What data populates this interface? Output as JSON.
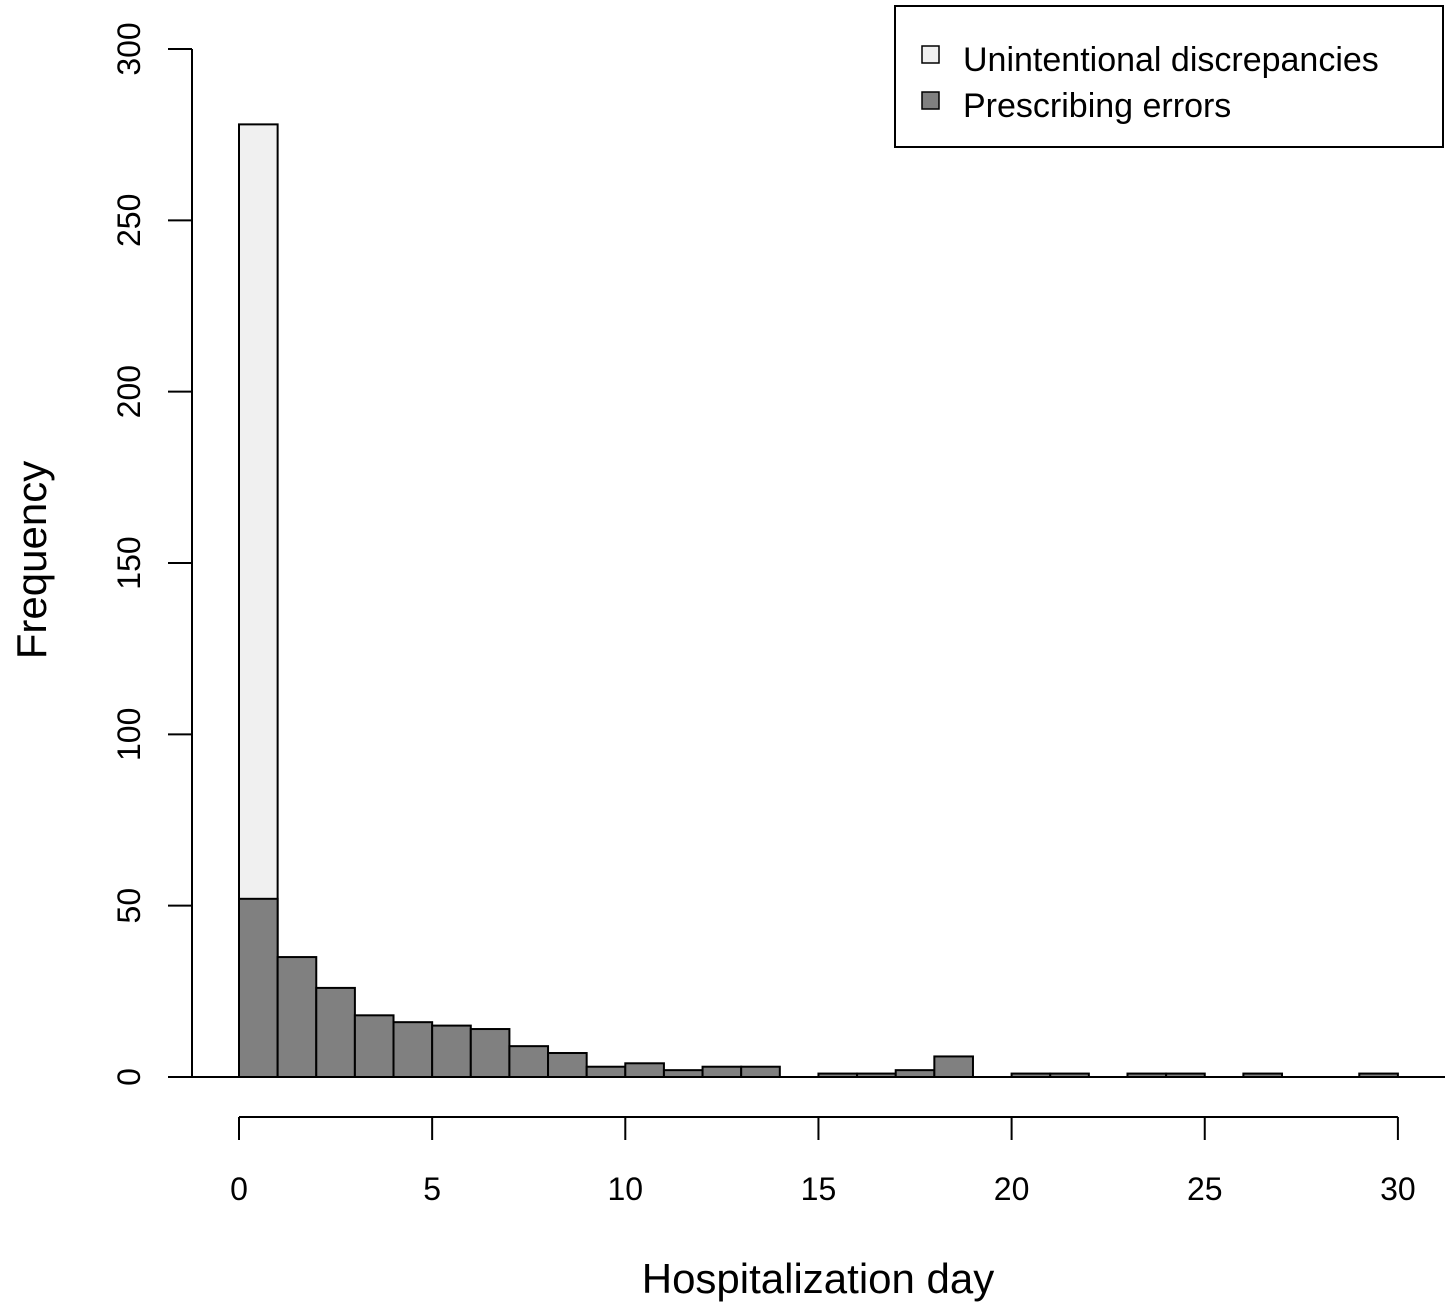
{
  "chart_data": {
    "type": "bar",
    "subtype": "overlaid-histogram",
    "xlabel": "Hospitalization day",
    "ylabel": "Frequency",
    "xlim": [
      0,
      30
    ],
    "ylim": [
      0,
      300
    ],
    "x_ticks": [
      0,
      5,
      10,
      15,
      20,
      25,
      30
    ],
    "y_ticks": [
      0,
      50,
      100,
      150,
      200,
      250,
      300
    ],
    "bin_width": 1,
    "bin_starts": [
      0,
      1,
      2,
      3,
      4,
      5,
      6,
      7,
      8,
      9,
      10,
      11,
      12,
      13,
      14,
      15,
      16,
      17,
      18,
      19,
      20,
      21,
      22,
      23,
      24,
      25,
      26,
      27,
      28,
      29
    ],
    "series": [
      {
        "name": "Unintentional discrepancies",
        "color": "#f0f0f0",
        "values": [
          278,
          0,
          0,
          0,
          0,
          0,
          0,
          0,
          0,
          0,
          0,
          0,
          0,
          0,
          0,
          0,
          0,
          0,
          0,
          0,
          0,
          0,
          0,
          0,
          0,
          0,
          0,
          0,
          0,
          0
        ]
      },
      {
        "name": "Prescribing errors",
        "color": "#808080",
        "values": [
          52,
          35,
          26,
          18,
          16,
          15,
          14,
          9,
          7,
          3,
          4,
          2,
          3,
          3,
          0,
          1,
          1,
          2,
          6,
          0,
          1,
          1,
          0,
          1,
          1,
          0,
          1,
          0,
          0,
          1
        ]
      }
    ],
    "legend_position": "top-right",
    "grid": false
  }
}
